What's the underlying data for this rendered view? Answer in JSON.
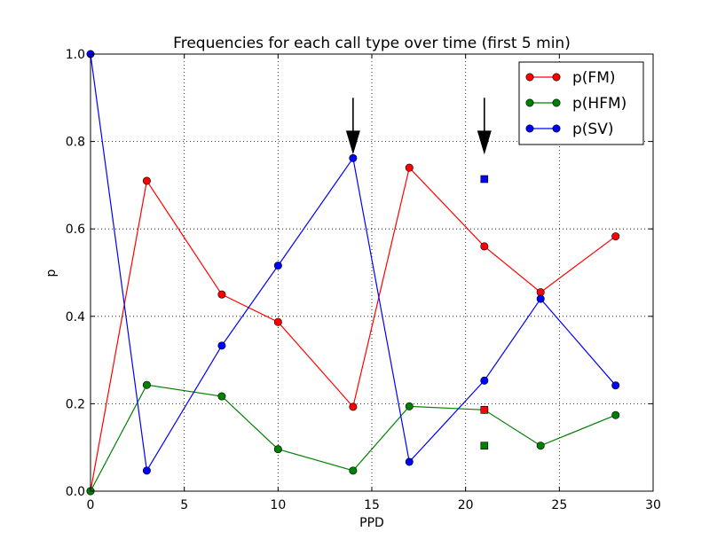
{
  "chart_data": {
    "type": "line",
    "title": "Frequencies for each call type over time (first 5 min)",
    "xlabel": "PPD",
    "ylabel": "p",
    "xlim": [
      0,
      30
    ],
    "ylim": [
      0,
      1.0
    ],
    "xticks": [
      0,
      5,
      10,
      15,
      20,
      25,
      30
    ],
    "yticks": [
      0.0,
      0.2,
      0.4,
      0.6,
      0.8,
      1.0
    ],
    "xtick_labels": [
      "0",
      "5",
      "10",
      "15",
      "20",
      "25",
      "30"
    ],
    "ytick_labels": [
      "0.0",
      "0.2",
      "0.4",
      "0.6",
      "0.8",
      "1.0"
    ],
    "grid": true,
    "legend_position": "top-right",
    "series": [
      {
        "name": "p(FM)",
        "color": "#ff0000",
        "x": [
          0,
          3,
          7,
          10,
          14,
          17,
          21,
          24,
          28
        ],
        "y": [
          0.0,
          0.71,
          0.45,
          0.387,
          0.193,
          0.74,
          0.56,
          0.455,
          0.583
        ]
      },
      {
        "name": "p(HFM)",
        "color": "#008000",
        "x": [
          0,
          3,
          7,
          10,
          14,
          17,
          21,
          24,
          28
        ],
        "y": [
          0.0,
          0.243,
          0.217,
          0.096,
          0.047,
          0.194,
          0.186,
          0.104,
          0.174
        ]
      },
      {
        "name": "p(SV)",
        "color": "#0000ff",
        "x": [
          0,
          3,
          7,
          10,
          14,
          17,
          21,
          24,
          28
        ],
        "y": [
          1.0,
          0.047,
          0.333,
          0.516,
          0.762,
          0.067,
          0.253,
          0.44,
          0.242
        ]
      }
    ],
    "extra_markers": [
      {
        "series": "p(SV)",
        "x": 21,
        "y": 0.714,
        "color": "#0000ff",
        "shape": "square"
      },
      {
        "series": "p(FM)",
        "x": 21,
        "y": 0.186,
        "color": "#ff0000",
        "shape": "square"
      },
      {
        "series": "p(HFM)",
        "x": 21,
        "y": 0.104,
        "color": "#008000",
        "shape": "square"
      }
    ],
    "annotations": [
      {
        "type": "arrow-down",
        "x": 14,
        "y_from": 0.9,
        "y_to": 0.77
      },
      {
        "type": "arrow-down",
        "x": 21,
        "y_from": 0.9,
        "y_to": 0.77
      }
    ]
  }
}
